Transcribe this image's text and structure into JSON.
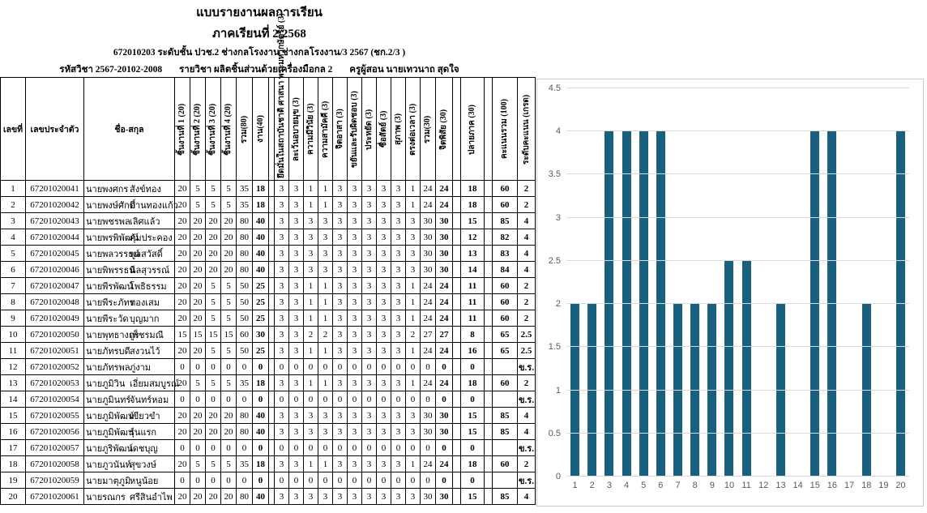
{
  "header": {
    "title": "แบบรายงานผลการเรียน",
    "semester": "ภาคเรียนที่ 2/2568",
    "class_line": "672010203 ระดับชั้น ปวช.2 ช่างกลโรงงาน ช่างกลโรงงาน/3 2567 (ชก.2/3 )",
    "course_code": "รหัสวิชา 2567-20102-2008",
    "course_name": "รายวิชา ผลิตชิ้นส่วนด้วยเครื่องมือกล 2",
    "teacher": "ครูผู้สอน นายเทวนาถ สุดใจ"
  },
  "table": {
    "columns": [
      {
        "label": "เลขที่",
        "w": 31,
        "t": "h"
      },
      {
        "label": "เลขประจำตัว",
        "w": 72,
        "t": "h"
      },
      {
        "label": "ชื่อ-สกุล",
        "w": 112,
        "t": "h"
      },
      {
        "label": "ชิ้นงานที่ 1 (20)",
        "w": 19,
        "t": "r"
      },
      {
        "label": "ชิ้นงานที่ 2 (20)",
        "w": 19,
        "t": "r"
      },
      {
        "label": "ชิ้นงานที่ 3 (20)",
        "w": 19,
        "t": "r"
      },
      {
        "label": "ชิ้นงานที่ 4 (20)",
        "w": 19,
        "t": "r"
      },
      {
        "label": "รวม(80)",
        "w": 20,
        "t": "r"
      },
      {
        "label": "งาน(40)",
        "w": 20,
        "t": "r",
        "b": true
      },
      {
        "label": "",
        "w": 7,
        "t": "g"
      },
      {
        "label": "ยึดมั่นในสถาบันชาติ ศาสนา พระมหากษัตริย์ (3)",
        "w": 18,
        "t": "r"
      },
      {
        "label": "ละเว้นอบายมุข (3)",
        "w": 18,
        "t": "r"
      },
      {
        "label": "ความมีวินัย (3)",
        "w": 18,
        "t": "r"
      },
      {
        "label": "ความสามัคคี (3)",
        "w": 18,
        "t": "r"
      },
      {
        "label": "จิตอาสา (3)",
        "w": 18,
        "t": "r"
      },
      {
        "label": "ขยันและรับผิดชอบ (3)",
        "w": 18,
        "t": "r"
      },
      {
        "label": "ประหยัด (3)",
        "w": 18,
        "t": "r"
      },
      {
        "label": "ซื่อสัตย์ (3)",
        "w": 18,
        "t": "r"
      },
      {
        "label": "สุภาพ (3)",
        "w": 18,
        "t": "r"
      },
      {
        "label": "ตรงต่อเวลา (3)",
        "w": 18,
        "t": "r"
      },
      {
        "label": "รวม(30)",
        "w": 19,
        "t": "r"
      },
      {
        "label": "จิตพิสัย (30)",
        "w": 21,
        "t": "r",
        "b": true
      },
      {
        "label": "",
        "w": 10,
        "t": "g"
      },
      {
        "label": "ปลายภาค (30)",
        "w": 29,
        "t": "r",
        "b": true
      },
      {
        "label": "",
        "w": 10,
        "t": "g"
      },
      {
        "label": "คะแนนรวม (100)",
        "w": 31,
        "t": "r",
        "b": true
      },
      {
        "label": "ระดับคะแนน (เกรด)",
        "w": 22,
        "t": "r",
        "b": true
      }
    ],
    "rows": [
      {
        "no": "1",
        "id": "67201020041",
        "first": "นายพงศกร",
        "last": "สังข์ทอง",
        "vals": [
          20,
          5,
          5,
          5,
          35,
          18,
          3,
          3,
          1,
          1,
          3,
          3,
          3,
          3,
          3,
          1,
          24,
          24,
          18,
          60,
          "2"
        ]
      },
      {
        "no": "2",
        "id": "67201020042",
        "first": "นายพงษ์ศักดิ์",
        "last": "ปานทองแก้ว",
        "vals": [
          20,
          5,
          5,
          5,
          35,
          18,
          3,
          3,
          1,
          1,
          3,
          3,
          3,
          3,
          3,
          1,
          24,
          24,
          18,
          60,
          "2"
        ]
      },
      {
        "no": "3",
        "id": "67201020043",
        "first": "นายพชรพล",
        "last": "เลิศแล้ว",
        "vals": [
          20,
          20,
          20,
          20,
          80,
          40,
          3,
          3,
          3,
          3,
          3,
          3,
          3,
          3,
          3,
          3,
          30,
          30,
          15,
          85,
          "4"
        ]
      },
      {
        "no": "4",
        "id": "67201020044",
        "first": "นายพรพิพัฒน์",
        "last": "คุ้มประคอง",
        "vals": [
          20,
          20,
          20,
          20,
          80,
          40,
          3,
          3,
          3,
          3,
          3,
          3,
          3,
          3,
          3,
          3,
          30,
          30,
          12,
          82,
          "4"
        ]
      },
      {
        "no": "5",
        "id": "67201020045",
        "first": "นายพลวรรธน์",
        "last": "พูลสวัสดิ์",
        "vals": [
          20,
          20,
          20,
          20,
          80,
          40,
          3,
          3,
          3,
          3,
          3,
          3,
          3,
          3,
          3,
          3,
          30,
          30,
          13,
          83,
          "4"
        ]
      },
      {
        "no": "6",
        "id": "67201020046",
        "first": "นายพิพรรธน์",
        "last": "นิลสุวรรณ์",
        "vals": [
          20,
          20,
          20,
          20,
          80,
          40,
          3,
          3,
          3,
          3,
          3,
          3,
          3,
          3,
          3,
          3,
          30,
          30,
          14,
          84,
          "4"
        ]
      },
      {
        "no": "7",
        "id": "67201020047",
        "first": "นายพีรพัฒน์",
        "last": "โพธิธรรม",
        "vals": [
          20,
          20,
          5,
          5,
          50,
          25,
          3,
          3,
          1,
          1,
          3,
          3,
          3,
          3,
          3,
          1,
          24,
          24,
          11,
          60,
          "2"
        ]
      },
      {
        "no": "8",
        "id": "67201020048",
        "first": "นายพีระภัทร",
        "last": "ทองเสม",
        "vals": [
          20,
          20,
          5,
          5,
          50,
          25,
          3,
          3,
          1,
          1,
          3,
          3,
          3,
          3,
          3,
          1,
          24,
          24,
          11,
          60,
          "2"
        ]
      },
      {
        "no": "9",
        "id": "67201020049",
        "first": "นายพีระวัด",
        "last": "บุญมาก",
        "vals": [
          20,
          20,
          5,
          5,
          50,
          25,
          3,
          3,
          1,
          1,
          3,
          3,
          3,
          3,
          3,
          1,
          24,
          24,
          11,
          60,
          "2"
        ]
      },
      {
        "no": "10",
        "id": "67201020050",
        "first": "นายพุทธางกูร",
        "last": "เพ็ชรมณี",
        "vals": [
          15,
          15,
          15,
          15,
          60,
          30,
          3,
          3,
          2,
          2,
          3,
          3,
          3,
          3,
          3,
          2,
          27,
          27,
          8,
          65,
          "2.5"
        ]
      },
      {
        "no": "11",
        "id": "67201020051",
        "first": "นายภัทรบดี",
        "last": "สงวนไว้",
        "vals": [
          20,
          20,
          5,
          5,
          50,
          25,
          3,
          3,
          1,
          1,
          3,
          3,
          3,
          3,
          3,
          1,
          24,
          24,
          16,
          65,
          "2.5"
        ]
      },
      {
        "no": "12",
        "id": "67201020052",
        "first": "นายภัทรพล",
        "last": "ภู่งาม",
        "vals": [
          0,
          0,
          0,
          0,
          0,
          0,
          0,
          0,
          0,
          0,
          0,
          0,
          0,
          0,
          0,
          0,
          0,
          0,
          0,
          "",
          "ข.ร."
        ]
      },
      {
        "no": "13",
        "id": "67201020053",
        "first": "นายภูมิวิน",
        "last": "เอี่ยมสมบูรณ์",
        "vals": [
          20,
          5,
          5,
          5,
          35,
          18,
          3,
          3,
          1,
          1,
          3,
          3,
          3,
          3,
          3,
          1,
          24,
          24,
          18,
          60,
          "2"
        ]
      },
      {
        "no": "14",
        "id": "67201020054",
        "first": "นายภูมินทร์",
        "last": "จันทร์หอม",
        "vals": [
          0,
          0,
          0,
          0,
          0,
          0,
          0,
          0,
          0,
          0,
          0,
          0,
          0,
          0,
          0,
          0,
          0,
          0,
          0,
          "",
          "ข.ร."
        ]
      },
      {
        "no": "15",
        "id": "67201020055",
        "first": "นายภูมิพัฒน์",
        "last": "เขียวขำ",
        "vals": [
          20,
          20,
          20,
          20,
          80,
          40,
          3,
          3,
          3,
          3,
          3,
          3,
          3,
          3,
          3,
          3,
          30,
          30,
          15,
          85,
          "4"
        ]
      },
      {
        "no": "16",
        "id": "67201020056",
        "first": "นายภูมิพัฒน์",
        "last": "รุ่นแรก",
        "vals": [
          20,
          20,
          20,
          20,
          80,
          40,
          3,
          3,
          3,
          3,
          3,
          3,
          3,
          3,
          3,
          3,
          30,
          30,
          15,
          85,
          "4"
        ]
      },
      {
        "no": "17",
        "id": "67201020057",
        "first": "นายภูริพัฒน์",
        "last": "เดชบุญ",
        "vals": [
          0,
          0,
          0,
          0,
          0,
          0,
          0,
          0,
          0,
          0,
          0,
          0,
          0,
          0,
          0,
          0,
          0,
          0,
          0,
          "",
          "ข.ร."
        ]
      },
      {
        "no": "18",
        "id": "67201020058",
        "first": "นายภูวนันท์",
        "last": "สุขวงษ์",
        "vals": [
          20,
          5,
          5,
          5,
          35,
          18,
          3,
          3,
          1,
          1,
          3,
          3,
          3,
          3,
          3,
          1,
          24,
          24,
          18,
          60,
          "2"
        ]
      },
      {
        "no": "19",
        "id": "67201020059",
        "first": "นายมาตุภูมิ",
        "last": "หนูน้อย",
        "vals": [
          0,
          0,
          0,
          0,
          0,
          0,
          0,
          0,
          0,
          0,
          0,
          0,
          0,
          0,
          0,
          0,
          0,
          0,
          0,
          "",
          "ข.ร."
        ]
      },
      {
        "no": "20",
        "id": "67201020061",
        "first": "นายรณกร",
        "last": "ศรีสินอำไพ",
        "vals": [
          20,
          20,
          20,
          20,
          80,
          40,
          3,
          3,
          3,
          3,
          3,
          3,
          3,
          3,
          3,
          3,
          30,
          30,
          15,
          85,
          "4"
        ]
      }
    ]
  },
  "chart_data": {
    "type": "bar",
    "title": "",
    "xlabel": "",
    "ylabel": "",
    "categories": [
      "1",
      "2",
      "3",
      "4",
      "5",
      "6",
      "7",
      "8",
      "9",
      "10",
      "11",
      "12",
      "13",
      "14",
      "15",
      "16",
      "17",
      "18",
      "19",
      "20"
    ],
    "values": [
      2,
      2,
      4,
      4,
      4,
      4,
      2,
      2,
      2,
      2.5,
      2.5,
      0,
      2,
      0,
      4,
      4,
      0,
      2,
      0,
      4
    ],
    "ylim": [
      0,
      4.5
    ],
    "yticks": [
      0,
      0.5,
      1,
      1.5,
      2,
      2.5,
      3,
      3.5,
      4,
      4.5
    ],
    "grid": true,
    "legend": false,
    "bar_color": "#19607f",
    "gridline_color": "#d9d9d9",
    "tick_color": "#595959"
  }
}
